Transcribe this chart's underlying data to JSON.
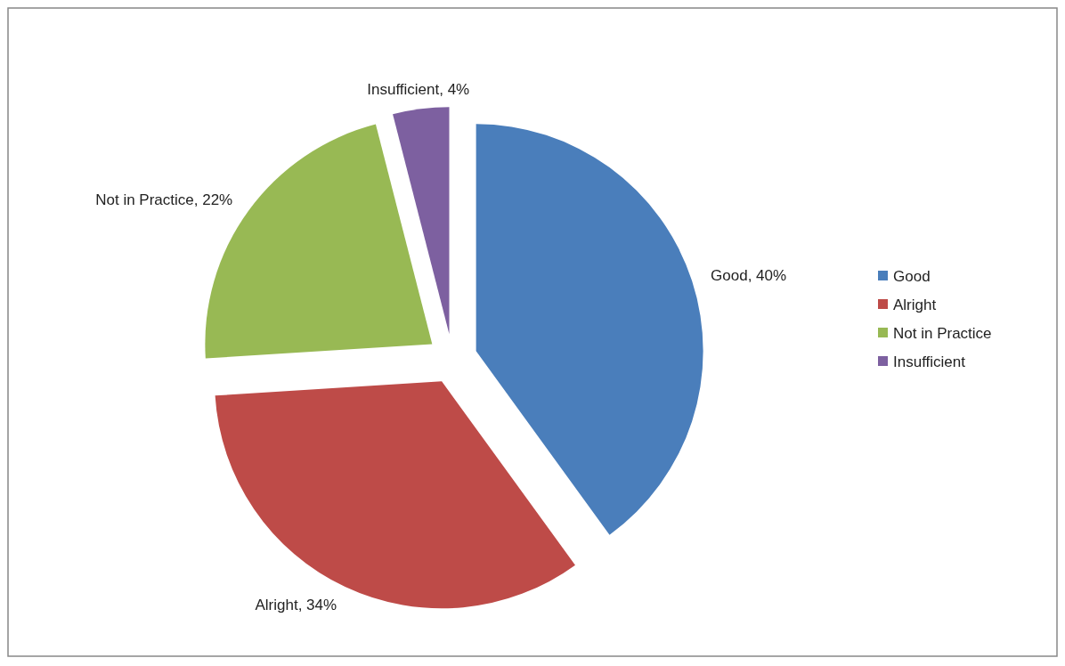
{
  "chart_data": {
    "type": "pie",
    "categories": [
      "Good",
      "Alright",
      "Not in Practice",
      "Insufficient"
    ],
    "values": [
      40,
      34,
      22,
      4
    ],
    "colors": [
      "#4a7ebb",
      "#be4b48",
      "#98b954",
      "#7d60a0"
    ],
    "value_labels": [
      "Good, 40%",
      "Alright, 34%",
      "Not in Practice, 22%",
      "Insufficient, 4%"
    ],
    "legend": "right"
  }
}
